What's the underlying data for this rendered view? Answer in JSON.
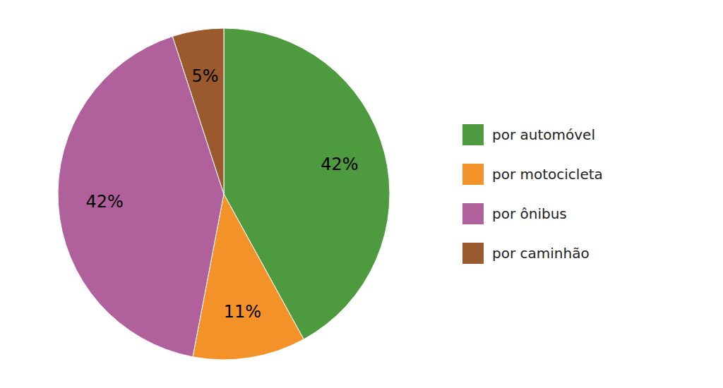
{
  "chart_data": {
    "type": "pie",
    "categories": [
      "por automóvel",
      "por motocicleta",
      "por ônibus",
      "por caminhão"
    ],
    "values": [
      42,
      11,
      42,
      5
    ],
    "value_labels": [
      "42%",
      "11%",
      "42%",
      "5%"
    ],
    "data_labels": true,
    "colors": [
      "#4e9a3f",
      "#f4922a",
      "#b0609a",
      "#9b5a2e"
    ],
    "legend": "right"
  }
}
